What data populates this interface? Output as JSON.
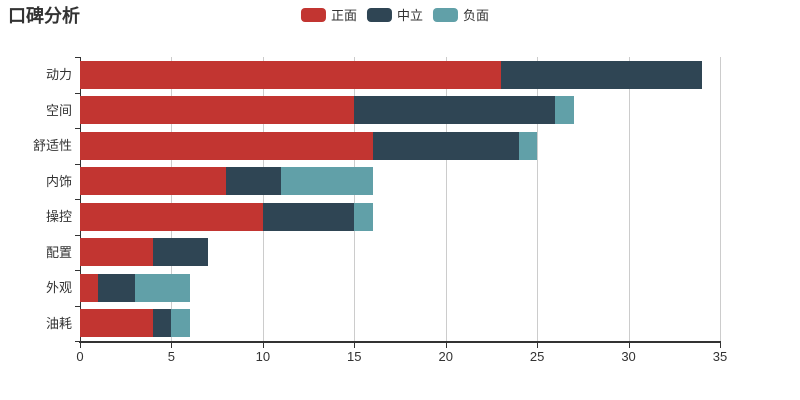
{
  "chart_data": {
    "type": "bar",
    "orientation": "horizontal",
    "stacked": true,
    "title": "口碑分析",
    "categories": [
      "动力",
      "空间",
      "舒适性",
      "内饰",
      "操控",
      "配置",
      "外观",
      "油耗"
    ],
    "series": [
      {
        "key": "positive",
        "name": "正面",
        "color": "#c23531",
        "values": [
          23,
          15,
          16,
          8,
          10,
          4,
          1,
          4
        ]
      },
      {
        "key": "neutral",
        "name": "中立",
        "color": "#2f4554",
        "values": [
          11,
          11,
          8,
          3,
          5,
          3,
          2,
          1
        ]
      },
      {
        "key": "negative",
        "name": "负面",
        "color": "#61a0a8",
        "values": [
          0,
          1,
          1,
          5,
          1,
          0,
          3,
          1
        ]
      }
    ],
    "stack_totals": [
      34,
      27,
      25,
      16,
      16,
      7,
      6,
      6
    ],
    "xlabel": "",
    "ylabel": "",
    "xlim": [
      0,
      35
    ],
    "x_ticks": [
      0,
      5,
      10,
      15,
      20,
      25,
      30,
      35
    ],
    "grid": true,
    "legend_position": "top-center",
    "colors": {
      "axis": "#333333",
      "grid": "#cccccc",
      "text": "#333333",
      "background": "#ffffff"
    }
  }
}
